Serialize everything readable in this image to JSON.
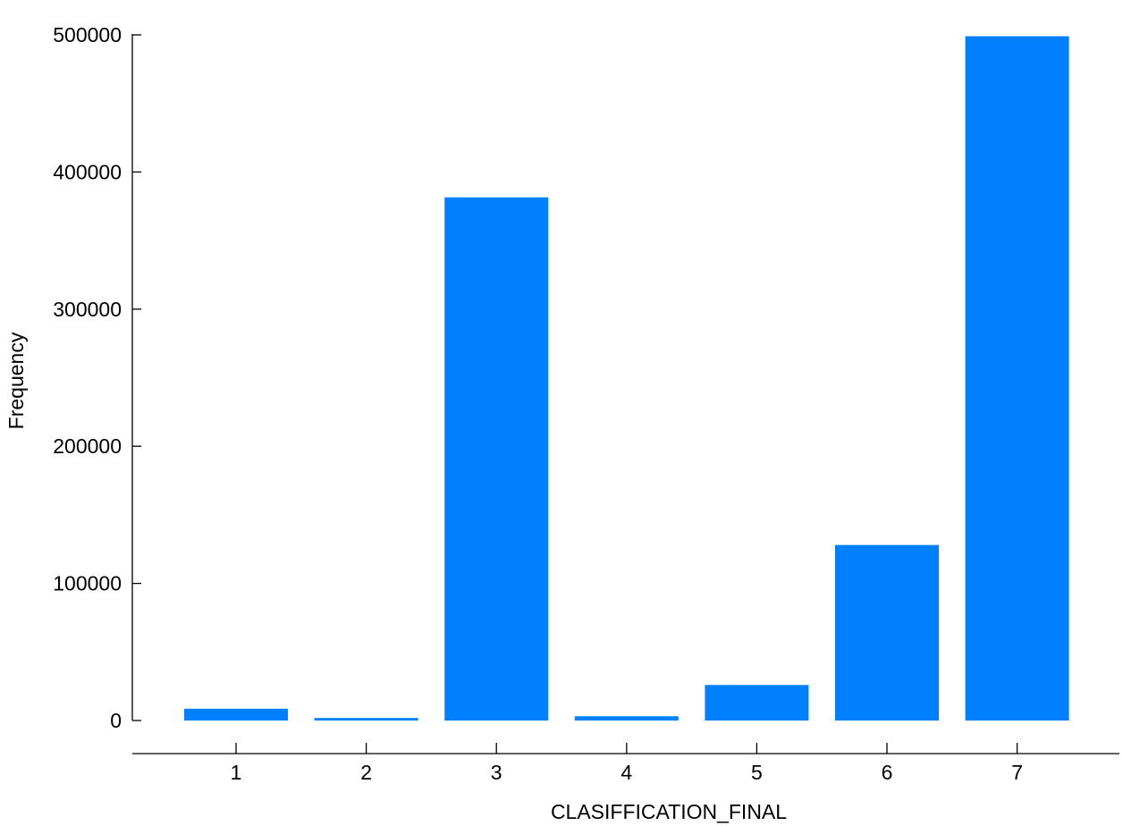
{
  "chart_data": {
    "type": "bar",
    "title": "",
    "xlabel": "CLASIFFICATION_FINAL",
    "ylabel": "Frequency",
    "categories": [
      "1",
      "2",
      "3",
      "4",
      "5",
      "6",
      "7"
    ],
    "values": [
      8600,
      1850,
      381500,
      3100,
      25900,
      128000,
      499000
    ],
    "ylim": [
      0,
      500000
    ],
    "yticks": [
      0,
      100000,
      200000,
      300000,
      400000,
      500000
    ],
    "ytick_labels": [
      "0",
      "100000",
      "200000",
      "300000",
      "400000",
      "500000"
    ],
    "bar_color": "#0080ff",
    "grid": false,
    "legend": "none"
  }
}
